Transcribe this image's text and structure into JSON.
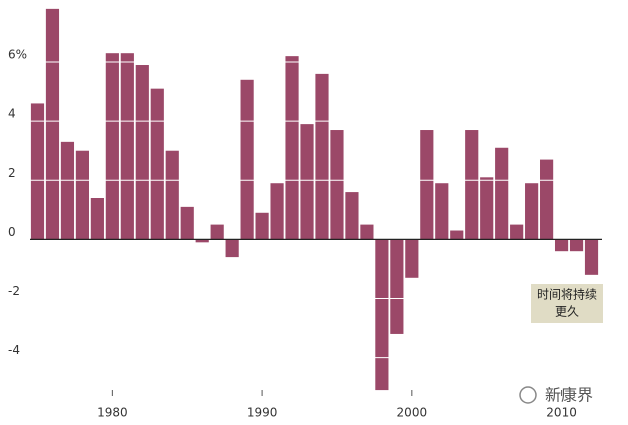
{
  "chart_data": {
    "type": "bar",
    "x": [
      1975,
      1976,
      1977,
      1978,
      1979,
      1980,
      1981,
      1982,
      1983,
      1984,
      1985,
      1986,
      1987,
      1988,
      1989,
      1990,
      1991,
      1992,
      1993,
      1994,
      1995,
      1996,
      1997,
      1998,
      1999,
      2000,
      2001,
      2002,
      2003,
      2004,
      2005,
      2006,
      2007,
      2008,
      2009,
      2010,
      2011,
      2012
    ],
    "values": [
      4.6,
      7.8,
      3.3,
      3.0,
      1.4,
      6.3,
      6.3,
      5.9,
      5.1,
      3.0,
      1.1,
      -0.1,
      0.5,
      -0.6,
      5.4,
      0.9,
      1.9,
      6.2,
      3.9,
      5.6,
      3.7,
      1.6,
      0.5,
      -5.1,
      -3.2,
      -1.3,
      3.7,
      1.9,
      0.3,
      3.7,
      2.1,
      3.1,
      0.5,
      1.9,
      2.7,
      -0.4,
      -0.4,
      -1.2
    ],
    "color": "#9b4868",
    "xlim": [
      1974.5,
      2012.7
    ],
    "xticks": [
      1980,
      1990,
      2000,
      2010
    ],
    "ylim": [
      -5.3,
      8.1
    ],
    "yticks": [
      {
        "value": 6,
        "label": "6%"
      },
      4,
      2,
      0,
      -2,
      -4
    ],
    "grid": true,
    "annotation": [
      "时间将持续",
      "更久"
    ],
    "watermark": "新康界"
  }
}
